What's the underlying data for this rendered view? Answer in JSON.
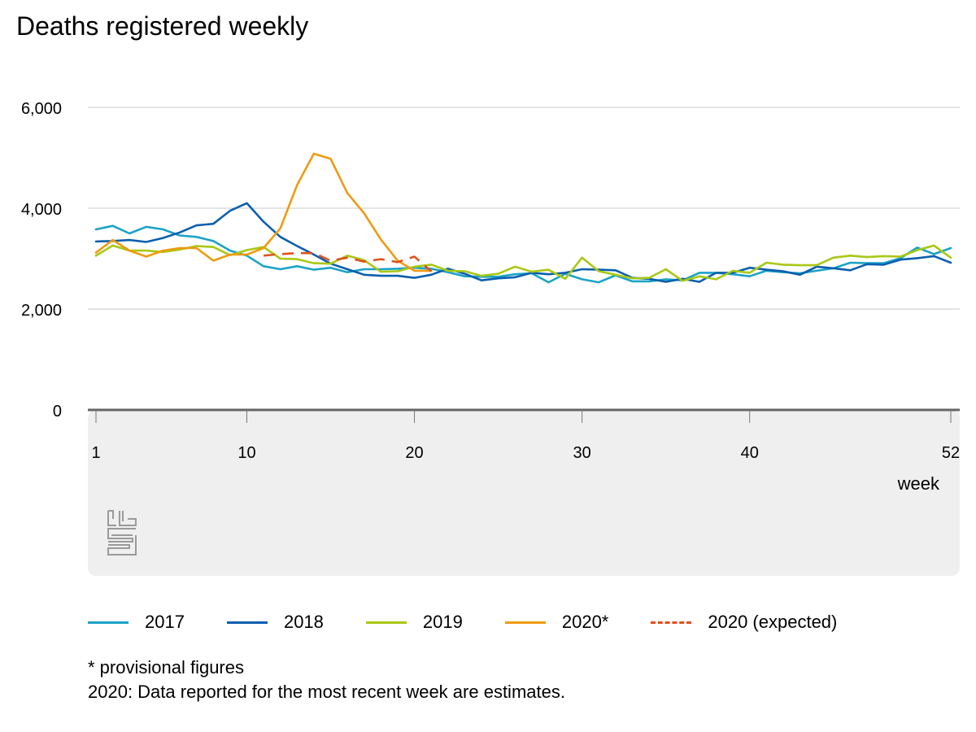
{
  "header": {
    "title": "Deaths registered weekly"
  },
  "colors": {
    "s2017": "#1ba3c6",
    "s2018": "#0b5fae",
    "s2019": "#a8c815",
    "s2020": "#ef9a11",
    "s2020_expected": "#e0511c",
    "grid": "#c8c8c8",
    "axis": "#666666",
    "panel": "#efefef"
  },
  "logo": {
    "icon": "cbs-logo-icon"
  },
  "notes": {
    "provisional": "* provisional figures",
    "estimate": "2020: Data reported for the most recent week are estimates."
  },
  "chart_data": {
    "type": "line",
    "title": "Deaths registered weekly",
    "xlabel": "week",
    "ylabel": "",
    "xlim": [
      1,
      52
    ],
    "ylim": [
      0,
      6000
    ],
    "yticks": [
      0,
      2000,
      4000,
      6000
    ],
    "ytick_labels": [
      "0",
      "2,000",
      "4,000",
      "6,000"
    ],
    "xticks": [
      1,
      10,
      20,
      30,
      40,
      52
    ],
    "xtick_labels": [
      "1",
      "10",
      "20",
      "30",
      "40",
      "52"
    ],
    "grid": true,
    "legend_position": "bottom",
    "series": [
      {
        "name": "2017",
        "style": "solid",
        "start_week": 1,
        "values": [
          3580,
          3650,
          3500,
          3630,
          3580,
          3460,
          3430,
          3350,
          3160,
          3060,
          2850,
          2790,
          2850,
          2780,
          2820,
          2730,
          2790,
          2790,
          2800,
          2820,
          2800,
          2730,
          2650,
          2640,
          2640,
          2690,
          2710,
          2530,
          2700,
          2590,
          2530,
          2670,
          2550,
          2550,
          2590,
          2570,
          2720,
          2720,
          2690,
          2650,
          2760,
          2730,
          2710,
          2760,
          2810,
          2920,
          2910,
          2910,
          3010,
          3220,
          3090,
          3210
        ]
      },
      {
        "name": "2018",
        "style": "solid",
        "start_week": 1,
        "values": [
          3340,
          3350,
          3370,
          3330,
          3410,
          3520,
          3660,
          3690,
          3950,
          4100,
          3730,
          3430,
          3250,
          3080,
          2900,
          2790,
          2680,
          2660,
          2660,
          2620,
          2680,
          2800,
          2700,
          2570,
          2610,
          2630,
          2720,
          2690,
          2720,
          2790,
          2780,
          2770,
          2620,
          2600,
          2540,
          2600,
          2540,
          2720,
          2720,
          2820,
          2780,
          2750,
          2680,
          2840,
          2810,
          2770,
          2890,
          2880,
          2980,
          3010,
          3050,
          2920
        ]
      },
      {
        "name": "2019",
        "style": "solid",
        "start_week": 1,
        "values": [
          3060,
          3260,
          3160,
          3160,
          3130,
          3180,
          3250,
          3230,
          3070,
          3170,
          3230,
          3000,
          2990,
          2910,
          2900,
          3060,
          2970,
          2740,
          2750,
          2840,
          2880,
          2760,
          2750,
          2660,
          2700,
          2840,
          2740,
          2780,
          2600,
          3020,
          2750,
          2680,
          2610,
          2620,
          2790,
          2560,
          2650,
          2590,
          2760,
          2720,
          2920,
          2880,
          2870,
          2870,
          3020,
          3060,
          3030,
          3050,
          3040,
          3170,
          3260,
          3020
        ]
      },
      {
        "name": "2020*",
        "style": "solid",
        "start_week": 1,
        "values": [
          3120,
          3370,
          3160,
          3040,
          3160,
          3210,
          3210,
          2960,
          3080,
          3080,
          3210,
          3600,
          4460,
          5080,
          4980,
          4300,
          3900,
          3380,
          2960,
          2760,
          2760
        ]
      },
      {
        "name": "2020 (expected)",
        "style": "dashed",
        "start_week": 11,
        "values": [
          3060,
          3090,
          3110,
          3110,
          2960,
          3020,
          2940,
          2990,
          2930,
          3040,
          2750
        ]
      }
    ]
  }
}
